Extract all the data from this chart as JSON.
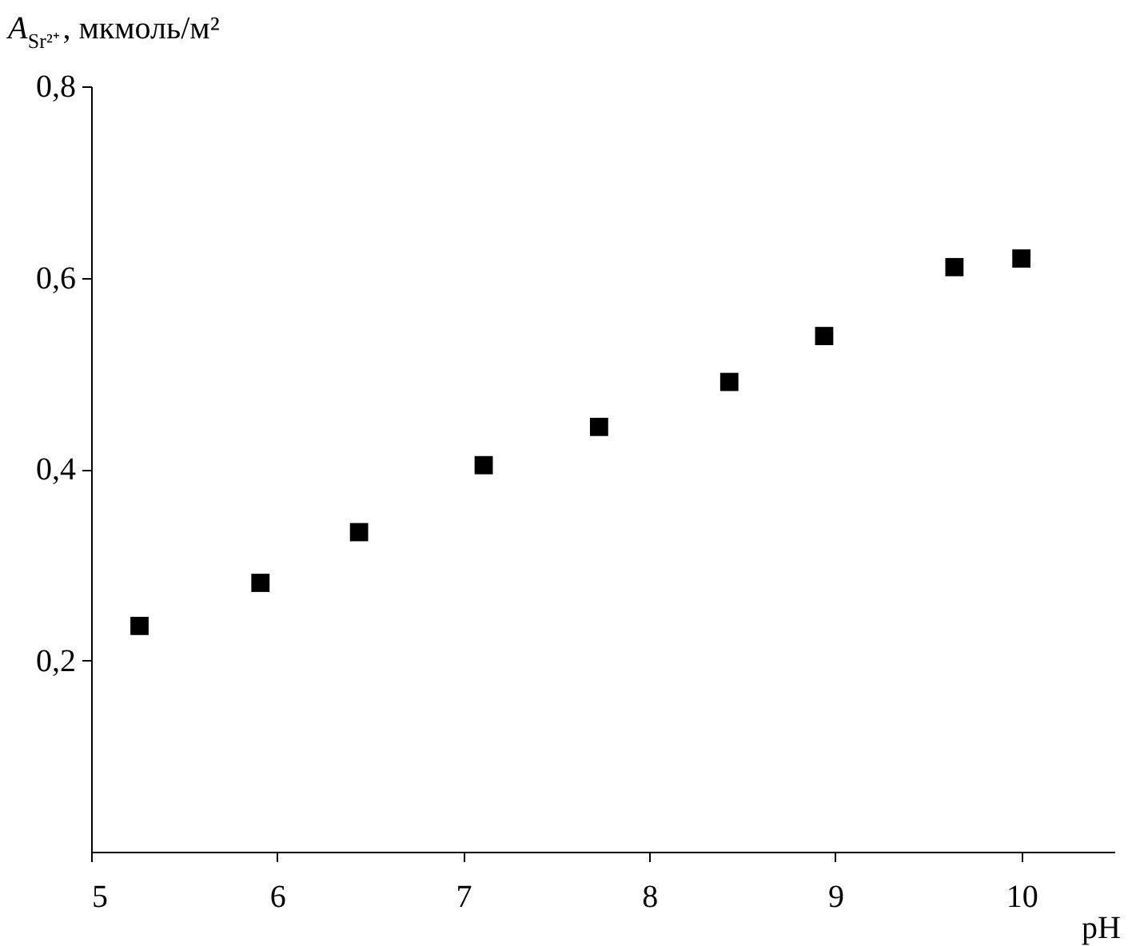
{
  "chart_data": {
    "type": "scatter",
    "xlabel": "pH",
    "ylabel": "A$_{Sr²⁺}$, мкмоль/м²",
    "x": [
      5.26,
      5.91,
      6.44,
      7.11,
      7.73,
      8.43,
      8.94,
      9.64,
      10.0
    ],
    "series": [
      {
        "color": "#000000",
        "values": [
          0.236,
          0.281,
          0.334,
          0.404,
          0.444,
          0.491,
          0.539,
          0.611,
          0.62
        ]
      }
    ],
    "xlim": [
      5,
      10.5
    ],
    "xticks": [
      5,
      6,
      7,
      8,
      9,
      10
    ],
    "ylim": [
      0,
      0.8
    ],
    "yticks": [
      {
        "value": 0.2,
        "label": "0,2"
      },
      {
        "value": 0.4,
        "label": "0,4"
      },
      {
        "value": 0.6,
        "label": "0,6"
      },
      {
        "value": 0.8,
        "label": "0,8"
      }
    ],
    "marker": "square"
  }
}
